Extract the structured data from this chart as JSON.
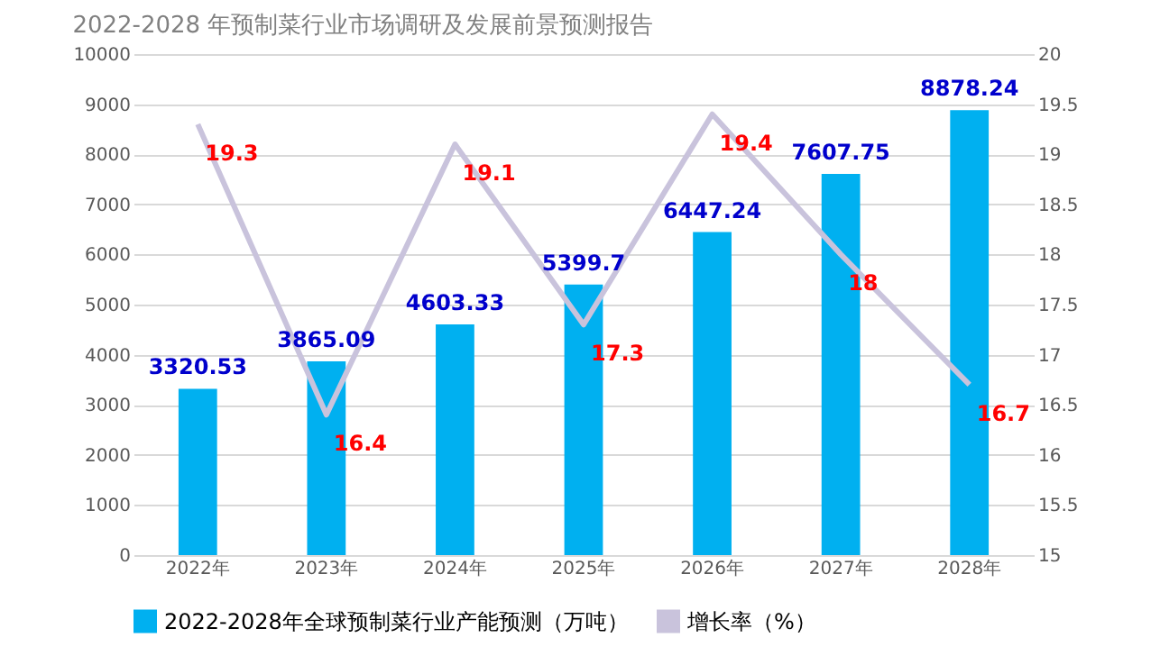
{
  "chart_data": {
    "type": "bar",
    "title": "2022-2028 年预制菜行业市场调研及发展前景预测报告",
    "categories": [
      "2022年",
      "2023年",
      "2024年",
      "2025年",
      "2026年",
      "2027年",
      "2028年"
    ],
    "series": [
      {
        "name": "2022-2028年全球预制菜行业产能预测（万吨）",
        "type": "bar",
        "color": "#00b0f0",
        "values": [
          3320.53,
          3865.09,
          4603.33,
          5399.7,
          6447.24,
          7607.75,
          8878.24
        ]
      },
      {
        "name": "增长率（%）",
        "type": "line",
        "axis": "y2",
        "color": "#c9c3dc",
        "values": [
          19.3,
          16.4,
          19.1,
          17.3,
          19.4,
          18,
          16.7
        ]
      }
    ],
    "ylim": [
      0,
      10000
    ],
    "yticks": [
      0,
      1000,
      2000,
      3000,
      4000,
      5000,
      6000,
      7000,
      8000,
      9000,
      10000
    ],
    "y2lim": [
      15,
      20
    ],
    "y2ticks": [
      15,
      15.5,
      16,
      16.5,
      17,
      17.5,
      18,
      18.5,
      19,
      19.5,
      20
    ],
    "grid": "y",
    "legend": "bottom",
    "data_labels": true,
    "marker": "none"
  }
}
